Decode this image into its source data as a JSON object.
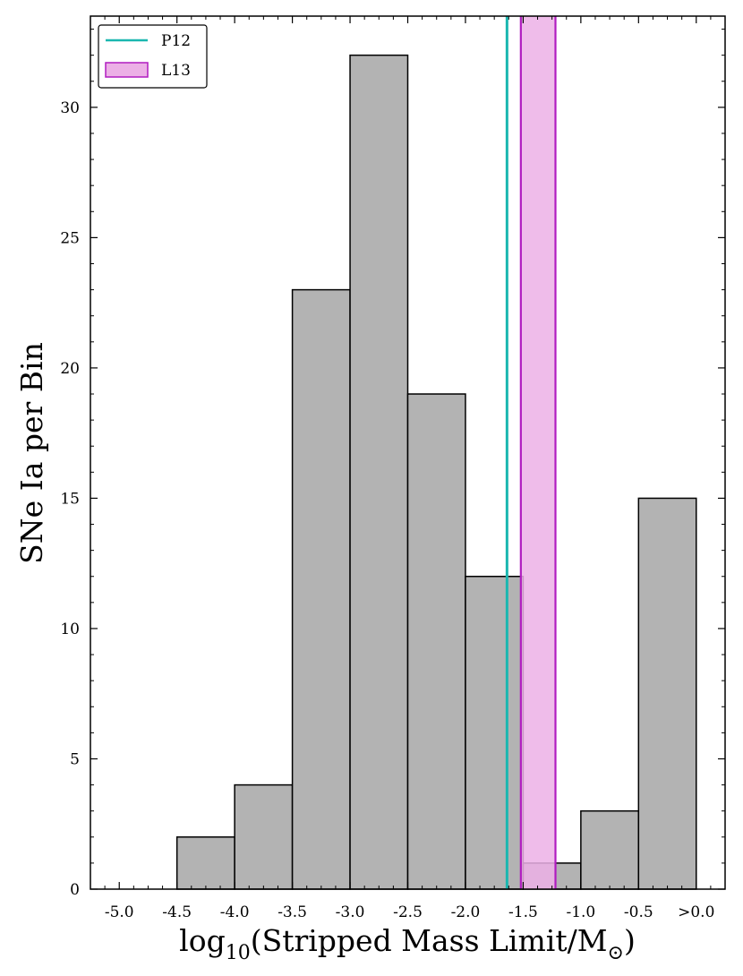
{
  "chart_data": {
    "type": "bar",
    "xlabel": {
      "main_before": "log",
      "subscript": "10",
      "main_middle": "(Stripped Mass Limit/M",
      "solar_symbol": "⊙",
      "main_after": ")"
    },
    "ylabel": "SNe Ia per Bin",
    "xlim": [
      -5.25,
      0.25
    ],
    "ylim": [
      0,
      33.5
    ],
    "x_ticks": [
      {
        "value": -5.0,
        "label": "-5.0"
      },
      {
        "value": -4.5,
        "label": "-4.5"
      },
      {
        "value": -4.0,
        "label": "-4.0"
      },
      {
        "value": -3.5,
        "label": "-3.5"
      },
      {
        "value": -3.0,
        "label": "-3.0"
      },
      {
        "value": -2.5,
        "label": "-2.5"
      },
      {
        "value": -2.0,
        "label": "-2.0"
      },
      {
        "value": -1.5,
        "label": "-1.5"
      },
      {
        "value": -1.0,
        "label": "-1.0"
      },
      {
        "value": -0.5,
        "label": "-0.5"
      },
      {
        "value": 0.0,
        "label": ">0.0"
      }
    ],
    "y_ticks": [
      0,
      5,
      10,
      15,
      20,
      25,
      30
    ],
    "bins": [
      {
        "start": -5.0,
        "end": -4.5,
        "count": 0
      },
      {
        "start": -4.5,
        "end": -4.0,
        "count": 2
      },
      {
        "start": -4.0,
        "end": -3.5,
        "count": 4
      },
      {
        "start": -3.5,
        "end": -3.0,
        "count": 23
      },
      {
        "start": -3.0,
        "end": -2.5,
        "count": 32
      },
      {
        "start": -2.5,
        "end": -2.0,
        "count": 19
      },
      {
        "start": -2.0,
        "end": -1.5,
        "count": 12
      },
      {
        "start": -1.5,
        "end": -1.0,
        "count": 1
      },
      {
        "start": -1.0,
        "end": -0.5,
        "count": 3
      },
      {
        "start": -0.5,
        "end": 0.0,
        "count": 15
      }
    ],
    "lines": [
      {
        "name": "P12",
        "x": -1.64,
        "color": "#1ab7b0"
      }
    ],
    "bands": [
      {
        "name": "L13",
        "x_start": -1.52,
        "x_end": -1.22,
        "fill": "#ecb0e6",
        "edge": "#b01cc0"
      }
    ],
    "legend": {
      "position": "top-left",
      "entries": [
        {
          "label": "P12",
          "kind": "line",
          "color": "#1ab7b0"
        },
        {
          "label": "L13",
          "kind": "patch",
          "fill": "#ecb0e6",
          "edge": "#b01cc0"
        }
      ]
    },
    "colors": {
      "bar_fill": "#b3b3b3",
      "bar_edge": "#000000"
    },
    "grid": false
  }
}
